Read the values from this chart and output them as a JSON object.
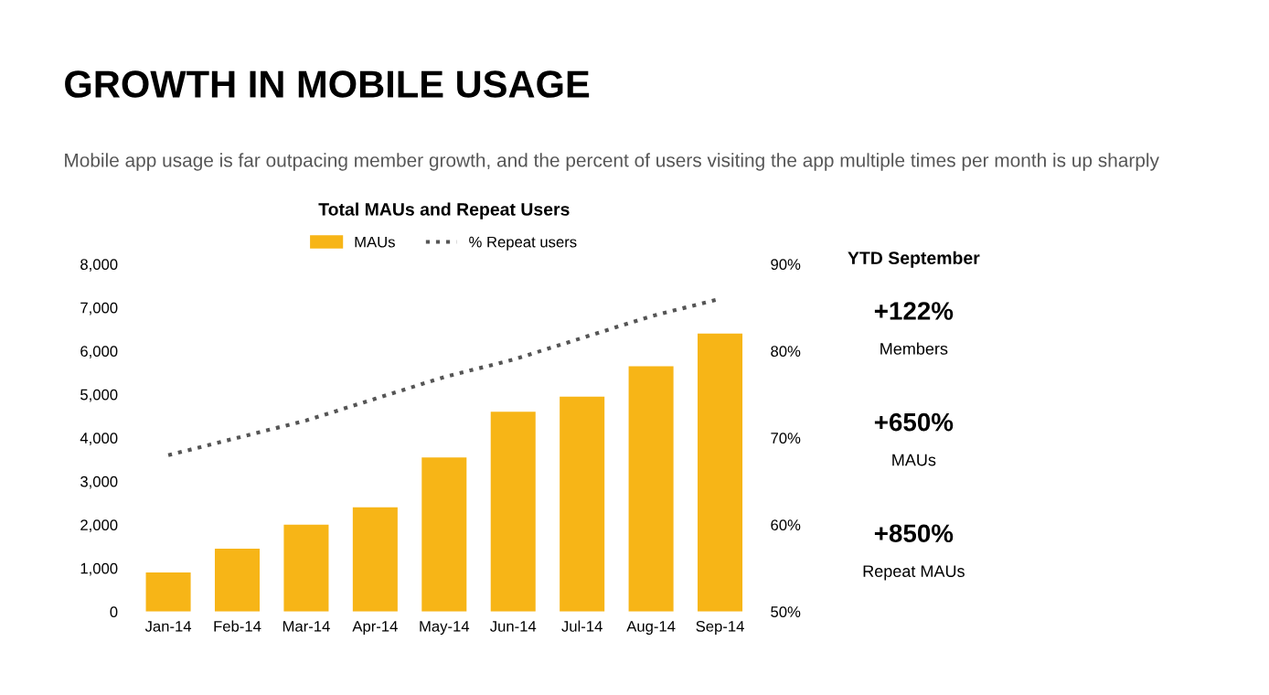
{
  "chart_data": {
    "type": "bar",
    "title": "GROWTH IN MOBILE USAGE",
    "subtitle": "Mobile app usage is far outpacing member growth, and the percent of users visiting the app multiple times per month is up sharply",
    "annotations": [
      "Total MAUs and Repeat Users",
      "YTD September",
      "+122%",
      "Members",
      "+650%",
      "MAUs",
      "+850%",
      "Repeat MAUs"
    ],
    "categories": [
      "Jan-14",
      "Feb-14",
      "Mar-14",
      "Apr-14",
      "May-14",
      "Jun-14",
      "Jul-14",
      "Aug-14",
      "Sep-14"
    ],
    "series": [
      {
        "name": "MAUs",
        "color": "#f7b517",
        "values": [
          900,
          1450,
          2000,
          2400,
          3550,
          4600,
          4950,
          5650,
          6400
        ]
      },
      {
        "name": "% Repeat users",
        "type": "line",
        "axis": "y2",
        "color": "#555555",
        "line_style": "dotted",
        "values": [
          68,
          70,
          72,
          74.5,
          77,
          79,
          81.5,
          84,
          86
        ]
      }
    ],
    "ylim": [
      0,
      8000
    ],
    "yticks": [
      0,
      {
        "value": 1000,
        "label": "1,000"
      },
      {
        "value": 2000,
        "label": "2,000"
      },
      {
        "value": 3000,
        "label": "3,000"
      },
      {
        "value": 4000,
        "label": "4,000"
      },
      {
        "value": 5000,
        "label": "5,000"
      },
      {
        "value": 6000,
        "label": "6,000"
      },
      {
        "value": 7000,
        "label": "7,000"
      },
      {
        "value": 8000,
        "label": "8,000"
      }
    ],
    "y2lim": [
      50,
      90
    ],
    "y2ticks": [
      {
        "value": 50,
        "label": "50%"
      },
      {
        "value": 60,
        "label": "60%"
      },
      {
        "value": 70,
        "label": "70%"
      },
      {
        "value": 80,
        "label": "80%"
      },
      {
        "value": 90,
        "label": "90%"
      }
    ],
    "legend": "top",
    "grid": false
  }
}
